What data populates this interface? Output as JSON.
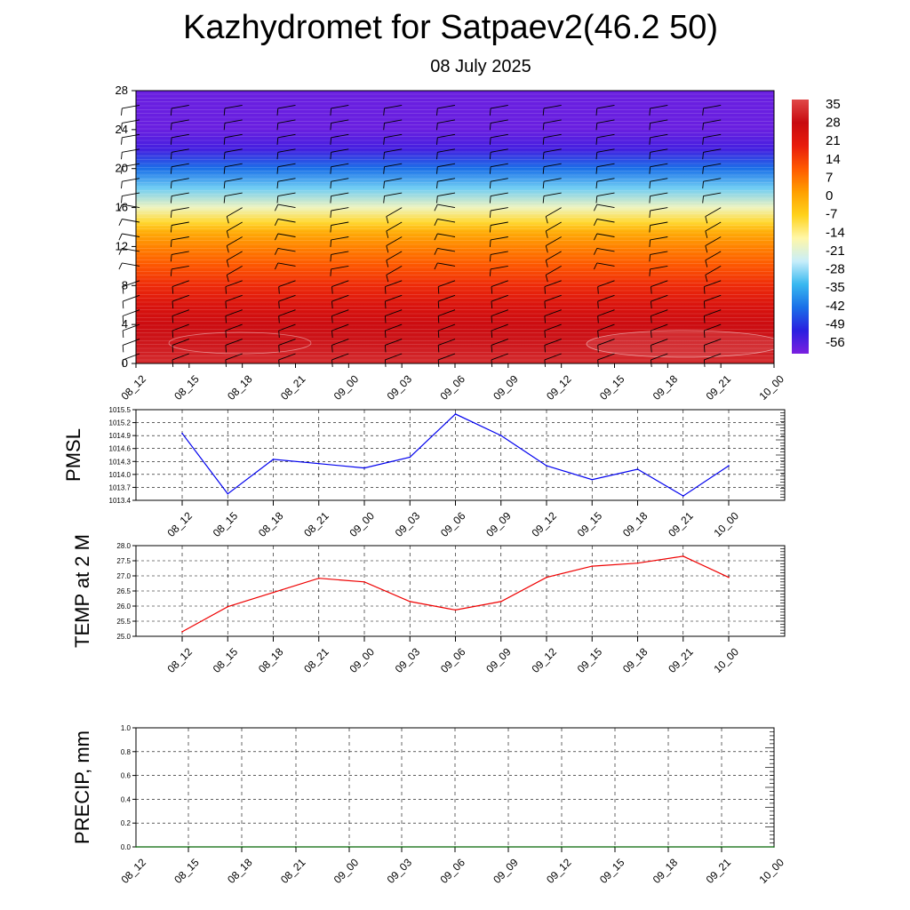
{
  "title": "Kazhydromet for Satpaev2(46.2 50)",
  "subtitle": "08 July 2025",
  "chart_data": [
    {
      "type": "heatmap",
      "description_key": "vertical-profile",
      "ylim": [
        0,
        28
      ],
      "yticks": [
        "0",
        "4",
        "8",
        "12",
        "16",
        "20",
        "24",
        "28"
      ],
      "x": [
        "08_12",
        "08_15",
        "08_18",
        "08_21",
        "09_00",
        "09_03",
        "09_06",
        "09_09",
        "09_12",
        "09_15",
        "09_18",
        "09_21",
        "10_00"
      ],
      "colorbar_labels": [
        "35",
        "28",
        "21",
        "14",
        "7",
        "0",
        "-7",
        "-14",
        "-21",
        "-28",
        "-35",
        "-42",
        "-49",
        "-56"
      ],
      "colorbar_range": [
        -60,
        38
      ],
      "level_temps": [
        [
          0,
          34
        ],
        [
          2,
          31
        ],
        [
          4,
          28
        ],
        [
          6,
          24
        ],
        [
          8,
          18
        ],
        [
          10,
          12
        ],
        [
          12,
          6
        ],
        [
          13.5,
          0
        ],
        [
          14.5,
          -8
        ],
        [
          16,
          -18
        ],
        [
          18,
          -30
        ],
        [
          20,
          -42
        ],
        [
          22,
          -54
        ],
        [
          24,
          -58
        ],
        [
          28,
          -58
        ]
      ],
      "colors": {
        "stops": [
          "#7b1fe0",
          "#2a1fe0",
          "#1a6fe8",
          "#38b8f0",
          "#c8eefa",
          "#fff7a8",
          "#ffd21a",
          "#ff9f00",
          "#ff5a00",
          "#e81c0c",
          "#c80a10",
          "#e04848"
        ]
      }
    },
    {
      "type": "line",
      "ylabel": "PMSL",
      "x": [
        "08_12",
        "08_15",
        "08_18",
        "08_21",
        "09_00",
        "09_03",
        "09_06",
        "09_09",
        "09_12",
        "09_15",
        "09_18",
        "09_21",
        "10_00"
      ],
      "values": [
        1014.95,
        1013.55,
        1014.35,
        1014.25,
        1014.15,
        1014.4,
        1015.4,
        1014.9,
        1014.2,
        1013.88,
        1014.12,
        1013.5,
        1014.2
      ],
      "ylim": [
        1013.4,
        1015.5
      ],
      "yticks": [
        "1013.4",
        "1013.7",
        "1014.0",
        "1014.3",
        "1014.6",
        "1014.9",
        "1015.2",
        "1015.5"
      ],
      "grid": true,
      "color": "#0000ee"
    },
    {
      "type": "line",
      "ylabel": "TEMP at 2 M",
      "x": [
        "08_12",
        "08_15",
        "08_18",
        "08_21",
        "09_00",
        "09_03",
        "09_06",
        "09_09",
        "09_12",
        "09_15",
        "09_18",
        "09_21",
        "10_00"
      ],
      "values": [
        25.15,
        25.98,
        26.45,
        26.92,
        26.8,
        26.15,
        25.87,
        26.15,
        26.95,
        27.32,
        27.42,
        27.65,
        26.95
      ],
      "ylim": [
        25.0,
        28.0
      ],
      "yticks": [
        "25.0",
        "25.5",
        "26.0",
        "26.5",
        "27.0",
        "27.5",
        "28.0"
      ],
      "grid": true,
      "color": "#ee0000"
    },
    {
      "type": "line",
      "ylabel": "PRECIP, mm",
      "x": [
        "08_12",
        "08_15",
        "08_18",
        "08_21",
        "09_00",
        "09_03",
        "09_06",
        "09_09",
        "09_12",
        "09_15",
        "09_18",
        "09_21",
        "10_00"
      ],
      "values": [
        0,
        0,
        0,
        0,
        0,
        0,
        0,
        0,
        0,
        0,
        0,
        0,
        0
      ],
      "ylim": [
        0.0,
        1.0
      ],
      "yticks": [
        "0.0",
        "0.2",
        "0.4",
        "0.6",
        "0.8",
        "1.0"
      ],
      "grid": true,
      "color": "#006400"
    }
  ]
}
